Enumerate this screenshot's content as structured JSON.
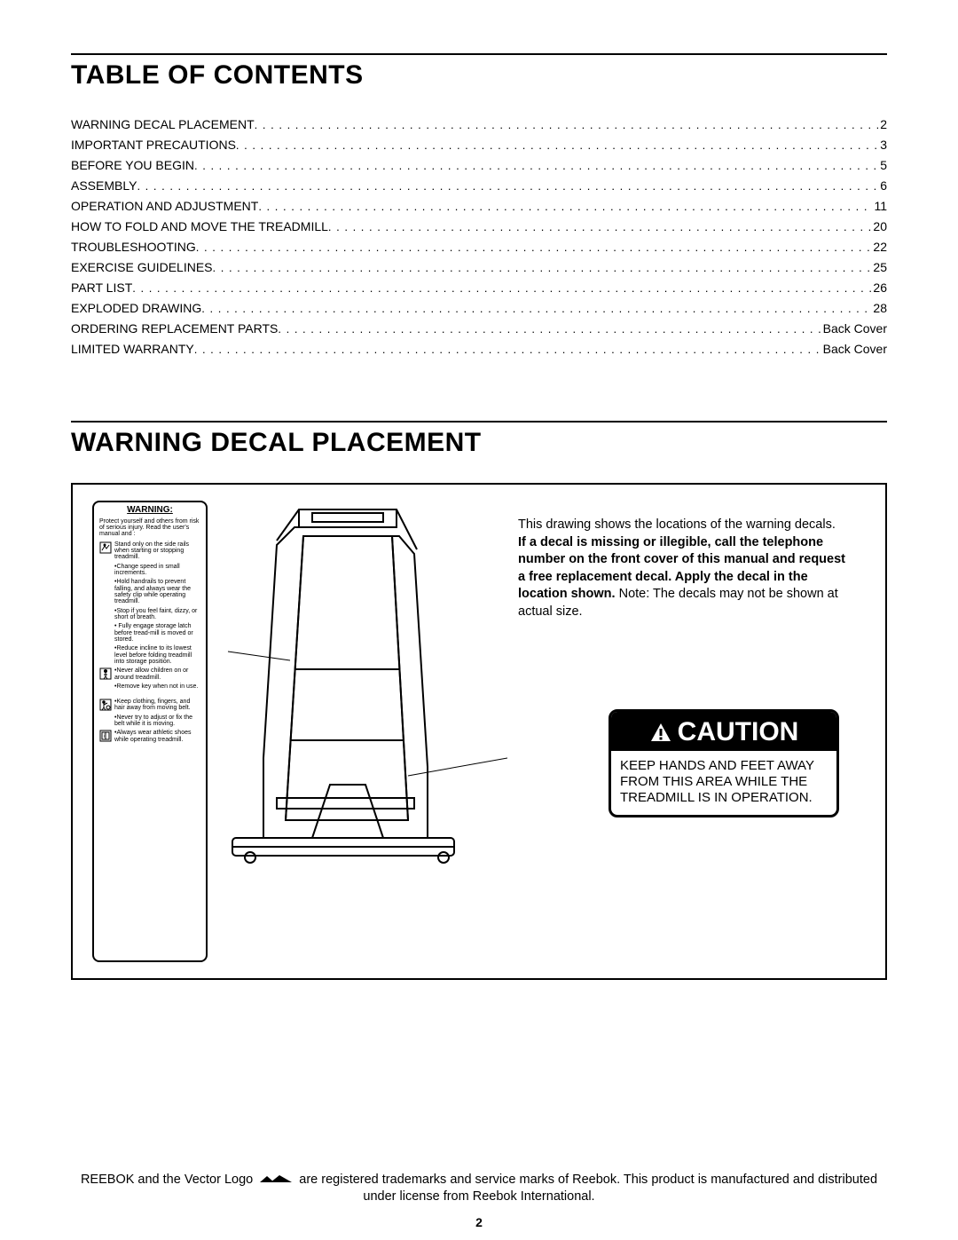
{
  "colors": {
    "text": "#000000",
    "background": "#ffffff",
    "rule": "#000000",
    "caution_bg": "#000000",
    "caution_fg": "#ffffff"
  },
  "typography": {
    "body_family": "Arial",
    "body_size_pt": 11,
    "title_size_pt": 22,
    "title_weight": "bold",
    "decal_tiny_pt": 5
  },
  "toc_title": "TABLE OF CONTENTS",
  "toc": [
    {
      "label": "WARNING DECAL PLACEMENT",
      "page": "2"
    },
    {
      "label": "IMPORTANT PRECAUTIONS",
      "page": "3"
    },
    {
      "label": "BEFORE YOU BEGIN",
      "page": "5"
    },
    {
      "label": "ASSEMBLY",
      "page": "6"
    },
    {
      "label": "OPERATION AND ADJUSTMENT",
      "page": "11"
    },
    {
      "label": "HOW TO FOLD AND MOVE THE TREADMILL",
      "page": "20"
    },
    {
      "label": "TROUBLESHOOTING",
      "page": "22"
    },
    {
      "label": "EXERCISE GUIDELINES",
      "page": "25"
    },
    {
      "label": "PART LIST",
      "page": "26"
    },
    {
      "label": "EXPLODED DRAWING",
      "page": "28"
    },
    {
      "label": "ORDERING REPLACEMENT PARTS",
      "page": "Back Cover"
    },
    {
      "label": "LIMITED WARRANTY",
      "page": "Back Cover"
    }
  ],
  "section2_title": "WARNING DECAL PLACEMENT",
  "warning_decal": {
    "title": "WARNING:",
    "intro": "Protect yourself and others from risk of serious injury. Read the user's manual and :",
    "items": [
      {
        "icon": "step",
        "text": "Stand only on the side rails when starting or stopping treadmill."
      },
      {
        "icon": "none",
        "text": "•Change speed in small increments."
      },
      {
        "icon": "none",
        "text": "•Hold handrails to prevent falling, and always wear the safety clip while operating treadmill."
      },
      {
        "icon": "none",
        "text": "•Stop if you feel faint, dizzy, or short of breath."
      },
      {
        "icon": "none",
        "text": "• Fully engage storage latch before tread-mill is moved or stored."
      },
      {
        "icon": "none",
        "text": "•Reduce incline to its lowest level before folding treadmill into storage position."
      },
      {
        "icon": "child",
        "text": "•Never allow children on or around treadmill."
      },
      {
        "icon": "none",
        "text": "•Remove key when not in use."
      },
      {
        "icon": "clothing",
        "text": "•Keep clothing, fingers, and hair away from moving belt."
      },
      {
        "icon": "none",
        "text": "•Never try to adjust or fix the belt while it is moving."
      },
      {
        "icon": "manual",
        "text": "•Always wear athletic shoes while operating treadmill."
      }
    ]
  },
  "description": {
    "part1": "This drawing shows the locations of the warning decals. ",
    "bold": "If a decal is missing or illegible, call the telephone number on the front cover of this manual and request a free replacement decal. Apply the decal in the location shown.",
    "part2": " Note: The decals may not be shown at actual size."
  },
  "caution": {
    "header": "CAUTION",
    "body": "KEEP HANDS AND FEET AWAY FROM THIS AREA WHILE THE TREADMILL IS IN OPERATION."
  },
  "footer": {
    "part1": "REEBOK and the Vector Logo ",
    "part2": " are registered trademarks and service marks of Reebok. This product is manufactured and distributed under license from Reebok International."
  },
  "page_number": "2"
}
